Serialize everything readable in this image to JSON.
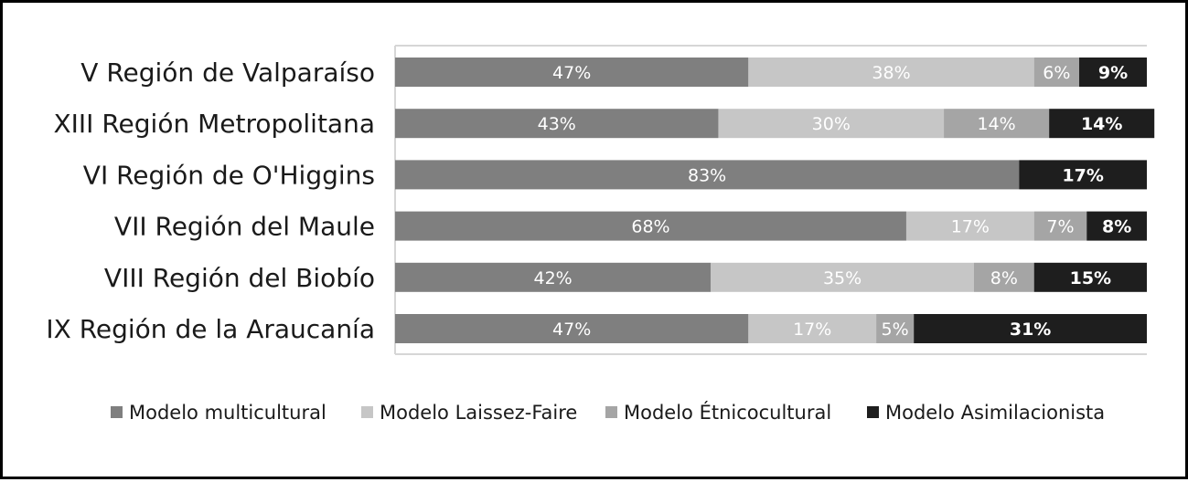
{
  "chart_data": {
    "type": "bar",
    "orientation": "horizontal",
    "stacked": true,
    "categories": [
      "V Región de Valparaíso",
      "XIII Región Metropolitana",
      "VI Región de O'Higgins",
      "VII Región del Maule",
      "VIII Región del Biobío",
      "IX Región de la Araucanía"
    ],
    "series": [
      {
        "name": "Modelo multicultural",
        "color": "#7f7f7f",
        "label_color": "#ffffff",
        "values": [
          47,
          43,
          83,
          68,
          42,
          47
        ],
        "labels": [
          "47%",
          "43%",
          "83%",
          "68%",
          "42%",
          "47%"
        ]
      },
      {
        "name": "Modelo Laissez-Faire",
        "color": "#c6c6c6",
        "label_color": "#ffffff",
        "values": [
          38,
          30,
          0,
          17,
          35,
          17
        ],
        "labels": [
          "38%",
          "30%",
          "",
          "17%",
          "35%",
          "17%"
        ]
      },
      {
        "name": "Modelo Étnicocultural",
        "color": "#a5a5a5",
        "label_color": "#ffffff",
        "values": [
          6,
          14,
          0,
          7,
          8,
          5
        ],
        "labels": [
          "6%",
          "14%",
          "",
          "7%",
          "8%",
          "5%"
        ]
      },
      {
        "name": "Modelo Asimilacionista",
        "color": "#1e1e1e",
        "label_color": "#ffffff",
        "values": [
          9,
          14,
          17,
          8,
          15,
          31
        ],
        "labels": [
          "9%",
          "14%",
          "17%",
          "8%",
          "15%",
          "31%"
        ]
      }
    ],
    "xlim": [
      0,
      100
    ],
    "grid": true,
    "legend_position": "bottom",
    "title": "",
    "xlabel": "",
    "ylabel": ""
  }
}
